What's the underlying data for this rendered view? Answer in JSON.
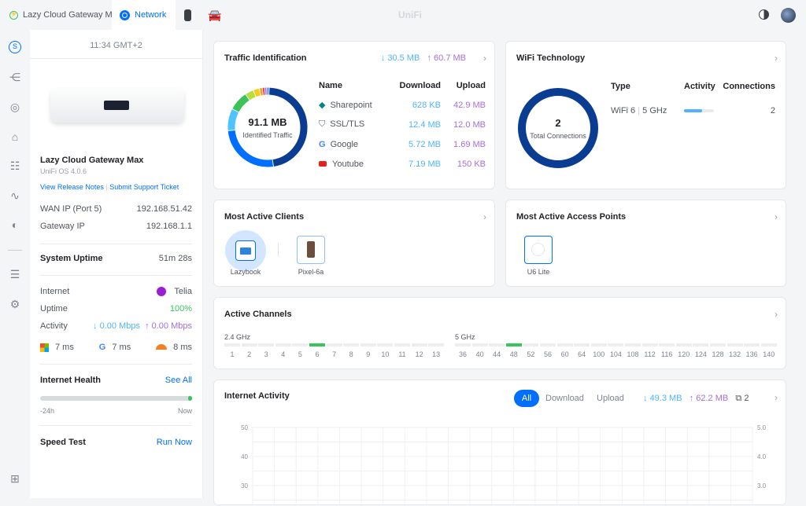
{
  "topbar": {
    "tabs": [
      {
        "label": "Lazy Cloud Gateway Max",
        "icon": "power-icon"
      },
      {
        "label": "Network",
        "icon": "network-icon"
      },
      {
        "icon": "protect-icon"
      },
      {
        "icon": "car-gear-icon"
      }
    ],
    "brand": "UniFi"
  },
  "left": {
    "time": "11:34 GMT+2",
    "device_name": "Lazy Cloud Gateway Max",
    "os": "UniFi OS 4.0.6",
    "release_notes": "View Release Notes",
    "support": "Submit Support Ticket",
    "wan_label": "WAN IP (Port 5)",
    "wan_value": "192.168.51.42",
    "gw_label": "Gateway IP",
    "gw_value": "192.168.1.1",
    "uptime_label": "System Uptime",
    "uptime_value": "51m 28s",
    "internet_label": "Internet",
    "isp": "Telia",
    "uptime2_label": "Uptime",
    "uptime2_value": "100%",
    "activity_label": "Activity",
    "activity_down": "↓ 0.00 Mbps",
    "activity_up": "↑ 0.00 Mbps",
    "latency": [
      {
        "icon": "microsoft-icon",
        "value": "7 ms"
      },
      {
        "icon": "google-icon",
        "value": "7 ms"
      },
      {
        "icon": "cloudflare-icon",
        "value": "8 ms"
      }
    ],
    "health_label": "Internet Health",
    "see_all": "See All",
    "health_start": "-24h",
    "health_end": "Now",
    "speed_label": "Speed Test",
    "run_now": "Run Now"
  },
  "traffic": {
    "title": "Traffic Identification",
    "down": "↓ 30.5 MB",
    "up": "↑ 60.7 MB",
    "total": "91.1 MB",
    "total_label": "Identified Traffic",
    "headers": [
      "Name",
      "Download",
      "Upload"
    ],
    "rows": [
      {
        "name": "Sharepoint",
        "down": "628 KB",
        "up": "42.9 MB"
      },
      {
        "name": "SSL/TLS",
        "down": "12.4 MB",
        "up": "12.0 MB"
      },
      {
        "name": "Google",
        "down": "5.72 MB",
        "up": "1.69 MB"
      },
      {
        "name": "Youtube",
        "down": "7.19 MB",
        "up": "150 KB"
      }
    ],
    "segments": [
      {
        "value": 47,
        "color": "#0a3d91"
      },
      {
        "value": 26,
        "color": "#006fff"
      },
      {
        "value": 9,
        "color": "#4fc3ff"
      },
      {
        "value": 8,
        "color": "#3bc35a"
      },
      {
        "value": 3.5,
        "color": "#b7de3b"
      },
      {
        "value": 2.5,
        "color": "#f5cc1d"
      },
      {
        "value": 1.2,
        "color": "#f59a23"
      },
      {
        "value": 1,
        "color": "#e94040"
      },
      {
        "value": 0.8,
        "color": "#b45ad8"
      },
      {
        "value": 1,
        "color": "#4a8cff"
      }
    ]
  },
  "wifi": {
    "title": "WiFi Technology",
    "headers": [
      "Type",
      "Activity",
      "Connections"
    ],
    "type": "WiFi 6",
    "band": "5 GHz",
    "activity": 0.6,
    "connections": "2",
    "total": "2",
    "total_label": "Total Connections"
  },
  "clients": {
    "title": "Most Active Clients",
    "items": [
      "Lazybook",
      "Pixel-6a"
    ]
  },
  "aps": {
    "title": "Most Active Access Points",
    "items": [
      "U6 Lite"
    ]
  },
  "channels": {
    "title": "Active Channels",
    "band24": "2.4 GHz",
    "band5": "5 GHz",
    "ch24": [
      "1",
      "2",
      "3",
      "4",
      "5",
      "6",
      "7",
      "8",
      "9",
      "10",
      "11",
      "12",
      "13"
    ],
    "active24": "6",
    "ch5": [
      "36",
      "40",
      "44",
      "48",
      "52",
      "56",
      "60",
      "64",
      "100",
      "104",
      "108",
      "112",
      "116",
      "120",
      "124",
      "128",
      "132",
      "136",
      "140"
    ],
    "active5": "48"
  },
  "activity": {
    "title": "Internet Activity",
    "filters": [
      "All",
      "Download",
      "Upload"
    ],
    "selected": "All",
    "down": "↓ 49.3 MB",
    "up": "↑ 62.2 MB",
    "clients": "2",
    "chart_data": {
      "type": "line",
      "left_ticks": [
        "50",
        "40",
        "30"
      ],
      "right_ticks": [
        "5.0",
        "4.0",
        "3.0"
      ],
      "series": []
    }
  }
}
